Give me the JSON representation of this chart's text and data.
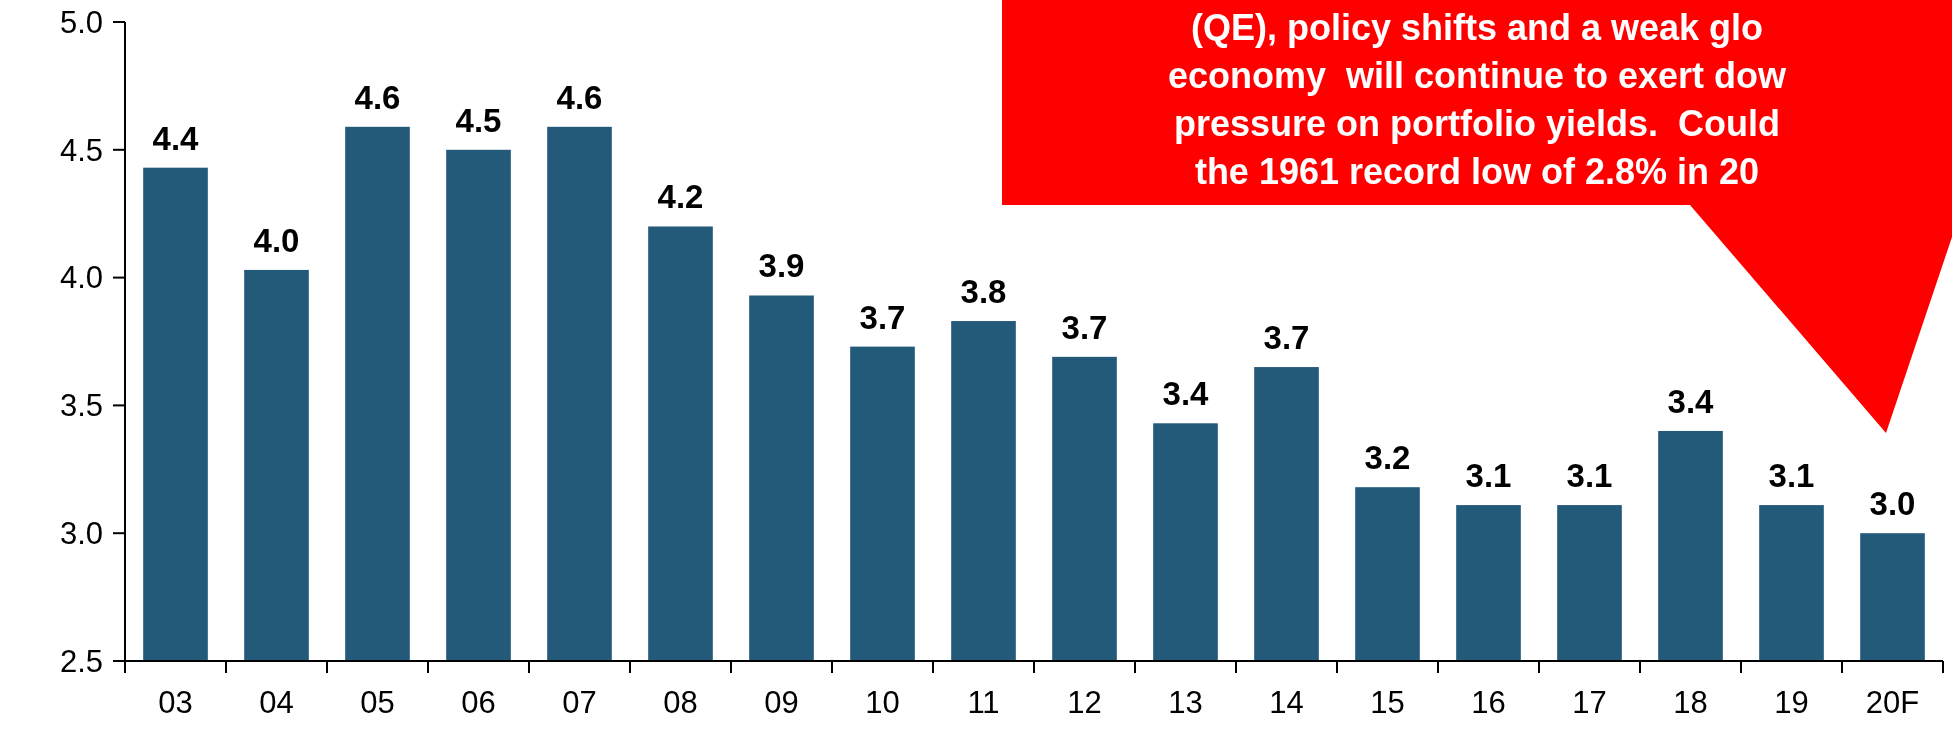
{
  "chart_data": {
    "type": "bar",
    "categories": [
      "03",
      "04",
      "05",
      "06",
      "07",
      "08",
      "09",
      "10",
      "11",
      "12",
      "13",
      "14",
      "15",
      "16",
      "17",
      "18",
      "19",
      "20F"
    ],
    "values": [
      4.43,
      4.03,
      4.59,
      4.5,
      4.59,
      4.2,
      3.93,
      3.73,
      3.83,
      3.69,
      3.43,
      3.65,
      3.18,
      3.11,
      3.11,
      3.4,
      3.11,
      3.0
    ],
    "value_labels": [
      "4.4",
      "4.0",
      "4.6",
      "4.5",
      "4.6",
      "4.2",
      "3.9",
      "3.7",
      "3.8",
      "3.7",
      "3.4",
      "3.7",
      "3.2",
      "3.1",
      "3.1",
      "3.4",
      "3.1",
      "3.0"
    ],
    "color": "#235a7a",
    "ylim": [
      2.5,
      5.0
    ],
    "yticks": [
      {
        "value": 2.5,
        "label": "2.5"
      },
      {
        "value": 3,
        "label": "3.0"
      },
      {
        "value": 3.5,
        "label": "3.5"
      },
      {
        "value": 4,
        "label": "4.0"
      },
      {
        "value": 4.5,
        "label": "4.5"
      },
      {
        "value": 5,
        "label": "5.0"
      }
    ],
    "annotations": [
      "(QE), policy shifts and a weak glo",
      "economy  will continue to exert dow",
      "pressure on portfolio yields.  Could",
      "the 1961 record low of 2.8% in 20"
    ]
  }
}
